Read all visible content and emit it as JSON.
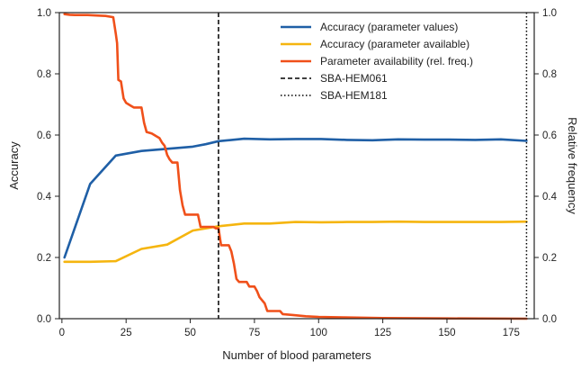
{
  "chart_data": {
    "type": "line",
    "title": "",
    "xlabel": "Number of blood parameters",
    "ylabel": "Accuracy",
    "y2label": "Relative frequency",
    "xlim": [
      -1,
      184
    ],
    "ylim": [
      0.0,
      1.0
    ],
    "y2lim": [
      0.0,
      1.0
    ],
    "xticks": [
      "0",
      "25",
      "50",
      "75",
      "100",
      "125",
      "150",
      "175"
    ],
    "yticks": [
      "0.0",
      "0.2",
      "0.4",
      "0.6",
      "0.8",
      "1.0"
    ],
    "y2ticks": [
      "0.0",
      "0.2",
      "0.4",
      "0.6",
      "0.8",
      "1.0"
    ],
    "grid": false,
    "legend_position": "top-right",
    "series": [
      {
        "name": "Accuracy (parameter values)",
        "color": "#1f5fa6",
        "axis": "left",
        "x": [
          1,
          11,
          21,
          31,
          41,
          51,
          56,
          61,
          71,
          81,
          91,
          101,
          111,
          121,
          131,
          141,
          151,
          161,
          171,
          181
        ],
        "y": [
          0.2,
          0.44,
          0.533,
          0.548,
          0.555,
          0.562,
          0.57,
          0.58,
          0.588,
          0.586,
          0.587,
          0.587,
          0.584,
          0.583,
          0.586,
          0.585,
          0.585,
          0.584,
          0.586,
          0.581
        ]
      },
      {
        "name": "Accuracy (parameter available)",
        "color": "#f5b50f",
        "axis": "left",
        "x": [
          1,
          11,
          21,
          31,
          41,
          51,
          61,
          71,
          81,
          91,
          101,
          111,
          121,
          131,
          141,
          151,
          161,
          171,
          181
        ],
        "y": [
          0.186,
          0.186,
          0.188,
          0.228,
          0.242,
          0.288,
          0.302,
          0.311,
          0.311,
          0.316,
          0.315,
          0.316,
          0.316,
          0.317,
          0.316,
          0.316,
          0.316,
          0.316,
          0.317
        ]
      },
      {
        "name": "Parameter availability (rel. freq.)",
        "color": "#f0501a",
        "axis": "right",
        "x": [
          1,
          3,
          5,
          10,
          15,
          17,
          20,
          21,
          21.5,
          22,
          23,
          24,
          25,
          27,
          28,
          31,
          32,
          33,
          35,
          37,
          38,
          39,
          40,
          41,
          42,
          43,
          45,
          46,
          47,
          48,
          53,
          54,
          59,
          60,
          61,
          62,
          65,
          66,
          67,
          68,
          69,
          72,
          73,
          75,
          76,
          77,
          79,
          80,
          85,
          86,
          90,
          95,
          100,
          110,
          125,
          150,
          181
        ],
        "y": [
          0.995,
          0.993,
          0.992,
          0.992,
          0.99,
          0.989,
          0.985,
          0.93,
          0.9,
          0.78,
          0.775,
          0.72,
          0.705,
          0.695,
          0.69,
          0.69,
          0.64,
          0.61,
          0.605,
          0.595,
          0.59,
          0.575,
          0.565,
          0.535,
          0.52,
          0.51,
          0.51,
          0.42,
          0.37,
          0.34,
          0.34,
          0.3,
          0.3,
          0.295,
          0.295,
          0.24,
          0.24,
          0.22,
          0.18,
          0.13,
          0.12,
          0.12,
          0.105,
          0.105,
          0.09,
          0.07,
          0.05,
          0.025,
          0.025,
          0.015,
          0.012,
          0.008,
          0.006,
          0.004,
          0.002,
          0.001,
          0.0
        ]
      },
      {
        "name": "SBA-HEM061",
        "color": "#000000",
        "style": "dashed",
        "vline_x": 61
      },
      {
        "name": "SBA-HEM181",
        "color": "#000000",
        "style": "dotted",
        "vline_x": 181
      }
    ]
  }
}
